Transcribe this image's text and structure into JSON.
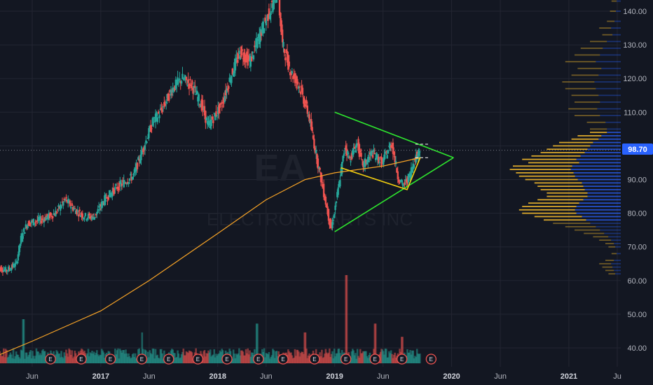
{
  "chart_data": {
    "type": "candlestick",
    "symbol": "EA",
    "interval": "1D",
    "company": "ELECTRONIC ARTS INC",
    "current_price": "98.70",
    "y_axis": {
      "ticks": [
        "140.00",
        "130.00",
        "120.00",
        "110.00",
        "100.00",
        "90.00",
        "80.00",
        "70.00",
        "60.00",
        "50.00",
        "40.00"
      ],
      "ylim": [
        35,
        143
      ]
    },
    "x_axis": {
      "ticks": [
        {
          "label": "Jun",
          "year": false,
          "date": "2016-06-01"
        },
        {
          "label": "2017",
          "year": true,
          "date": "2017-01-01"
        },
        {
          "label": "Jun",
          "year": false,
          "date": "2017-06-01"
        },
        {
          "label": "2018",
          "year": true,
          "date": "2018-01-01"
        },
        {
          "label": "Jun",
          "year": false,
          "date": "2018-06-01"
        },
        {
          "label": "2019",
          "year": true,
          "date": "2019-01-01"
        },
        {
          "label": "Jun",
          "year": false,
          "date": "2019-06-01"
        },
        {
          "label": "2020",
          "year": true,
          "date": "2020-01-01"
        },
        {
          "label": "Jun",
          "year": false,
          "date": "2020-06-01"
        },
        {
          "label": "2021",
          "year": true,
          "date": "2021-01-01"
        },
        {
          "label": "Ju",
          "year": false,
          "date": "2021-06-01"
        }
      ]
    },
    "price_path": [
      [
        "2016-02-15",
        64
      ],
      [
        "2016-03-15",
        63
      ],
      [
        "2016-04-15",
        65
      ],
      [
        "2016-05-01",
        73
      ],
      [
        "2016-05-20",
        77
      ],
      [
        "2016-07-01",
        78
      ],
      [
        "2016-08-15",
        80
      ],
      [
        "2016-09-15",
        84
      ],
      [
        "2016-10-15",
        81
      ],
      [
        "2016-11-15",
        79
      ],
      [
        "2016-12-15",
        79
      ],
      [
        "2017-01-15",
        84
      ],
      [
        "2017-02-15",
        87
      ],
      [
        "2017-03-15",
        89
      ],
      [
        "2017-04-15",
        91
      ],
      [
        "2017-05-15",
        99
      ],
      [
        "2017-06-15",
        107
      ],
      [
        "2017-07-15",
        111
      ],
      [
        "2017-08-15",
        117
      ],
      [
        "2017-09-15",
        120
      ],
      [
        "2017-10-15",
        118
      ],
      [
        "2017-11-15",
        112
      ],
      [
        "2017-12-05",
        106
      ],
      [
        "2018-01-15",
        112
      ],
      [
        "2018-02-15",
        121
      ],
      [
        "2018-03-15",
        128
      ],
      [
        "2018-04-15",
        125
      ],
      [
        "2018-05-15",
        133
      ],
      [
        "2018-06-15",
        140
      ],
      [
        "2018-07-10",
        146
      ],
      [
        "2018-07-25",
        130
      ],
      [
        "2018-08-20",
        122
      ],
      [
        "2018-09-15",
        118
      ],
      [
        "2018-10-15",
        109
      ],
      [
        "2018-11-10",
        96
      ],
      [
        "2018-12-01",
        86
      ],
      [
        "2018-12-24",
        75
      ],
      [
        "2019-01-15",
        87
      ],
      [
        "2019-02-05",
        100
      ],
      [
        "2019-02-20",
        96
      ],
      [
        "2019-03-15",
        101
      ],
      [
        "2019-04-01",
        94
      ],
      [
        "2019-05-01",
        98
      ],
      [
        "2019-06-01",
        95
      ],
      [
        "2019-07-01",
        101
      ],
      [
        "2019-07-20",
        91
      ],
      [
        "2019-08-05",
        88
      ],
      [
        "2019-08-25",
        91
      ],
      [
        "2019-09-10",
        96
      ],
      [
        "2019-09-25",
        98.7
      ]
    ],
    "moving_average": {
      "color": "#f7a326",
      "points": [
        [
          "2016-01-01",
          36
        ],
        [
          "2016-06-01",
          42
        ],
        [
          "2017-01-01",
          51
        ],
        [
          "2017-06-01",
          60
        ],
        [
          "2018-01-01",
          74
        ],
        [
          "2018-06-01",
          84
        ],
        [
          "2018-10-01",
          90
        ],
        [
          "2019-01-01",
          92
        ],
        [
          "2019-06-01",
          94
        ],
        [
          "2019-09-25",
          96.5
        ]
      ]
    },
    "volume": {
      "spikes": [
        [
          "2016-05-05",
          0.5
        ],
        [
          "2017-05-10",
          0.35
        ],
        [
          "2018-05-03",
          0.45
        ],
        [
          "2018-10-01",
          0.35
        ],
        [
          "2019-02-06",
          1.0
        ],
        [
          "2019-05-08",
          0.45
        ],
        [
          "2019-07-31",
          0.3
        ]
      ]
    },
    "earnings_dates": [
      "2016-07-28",
      "2016-11-01",
      "2017-01-31",
      "2017-05-09",
      "2017-08-01",
      "2017-10-31",
      "2018-01-30",
      "2018-05-08",
      "2018-07-24",
      "2018-10-30",
      "2019-02-05",
      "2019-05-07",
      "2019-07-30",
      "2019-10-29"
    ],
    "earnings_label": "E",
    "volume_profile": [
      [
        143,
        0.3
      ],
      [
        140,
        0.35
      ],
      [
        137,
        0.45
      ],
      [
        135,
        0.7
      ],
      [
        133,
        0.6
      ],
      [
        131,
        1.0
      ],
      [
        129,
        1.3
      ],
      [
        127,
        1.5
      ],
      [
        125,
        1.8
      ],
      [
        123,
        1.4
      ],
      [
        121,
        1.6
      ],
      [
        119,
        1.9
      ],
      [
        117,
        1.8
      ],
      [
        115,
        1.6
      ],
      [
        113,
        1.5
      ],
      [
        111,
        1.7
      ],
      [
        109,
        1.5
      ],
      [
        107,
        1.1
      ],
      [
        105,
        1.0
      ],
      [
        104,
        1.0
      ],
      [
        103,
        1.4
      ],
      [
        102,
        1.6
      ],
      [
        101,
        2.0
      ],
      [
        100,
        2.2
      ],
      [
        99,
        2.4
      ],
      [
        98,
        2.6
      ],
      [
        97,
        2.9
      ],
      [
        96,
        3.2
      ],
      [
        95,
        3.0
      ],
      [
        94,
        3.5
      ],
      [
        93,
        3.6
      ],
      [
        92,
        3.4
      ],
      [
        91,
        3.3
      ],
      [
        90,
        3.1
      ],
      [
        89,
        2.8
      ],
      [
        88,
        2.7
      ],
      [
        87,
        2.6
      ],
      [
        86,
        2.4
      ],
      [
        85,
        2.4
      ],
      [
        84,
        2.7
      ],
      [
        83,
        3.0
      ],
      [
        82,
        3.2
      ],
      [
        81,
        3.3
      ],
      [
        80,
        3.2
      ],
      [
        79,
        2.8
      ],
      [
        78,
        2.5
      ],
      [
        77,
        2.2
      ],
      [
        76,
        1.8
      ],
      [
        75,
        1.5
      ],
      [
        74,
        1.2
      ],
      [
        73,
        0.9
      ],
      [
        72,
        0.7
      ],
      [
        71,
        0.5
      ],
      [
        70,
        0.4
      ],
      [
        68,
        0.3
      ],
      [
        66,
        0.5
      ],
      [
        65,
        0.7
      ],
      [
        64,
        0.6
      ],
      [
        63,
        0.5
      ],
      [
        62,
        0.4
      ]
    ],
    "annotations": {
      "triangle_color": "#2ee62e",
      "wedge_color": "#f5d00f",
      "pattern": {
        "upper": [
          [
            "2019-01-01",
            110
          ],
          [
            "2020-01-07",
            96.5
          ]
        ],
        "lower": [
          [
            "2019-01-01",
            74.5
          ],
          [
            "2020-01-07",
            96.5
          ]
        ],
        "wedge": [
          [
            "2019-01-20",
            93.5
          ],
          [
            "2019-08-15",
            87
          ],
          [
            "2019-09-25",
            96.5
          ]
        ],
        "dashed_levels": [
          100.5,
          96.5
        ],
        "dashed_range": [
          "2019-09-10",
          "2019-10-20"
        ]
      }
    }
  }
}
